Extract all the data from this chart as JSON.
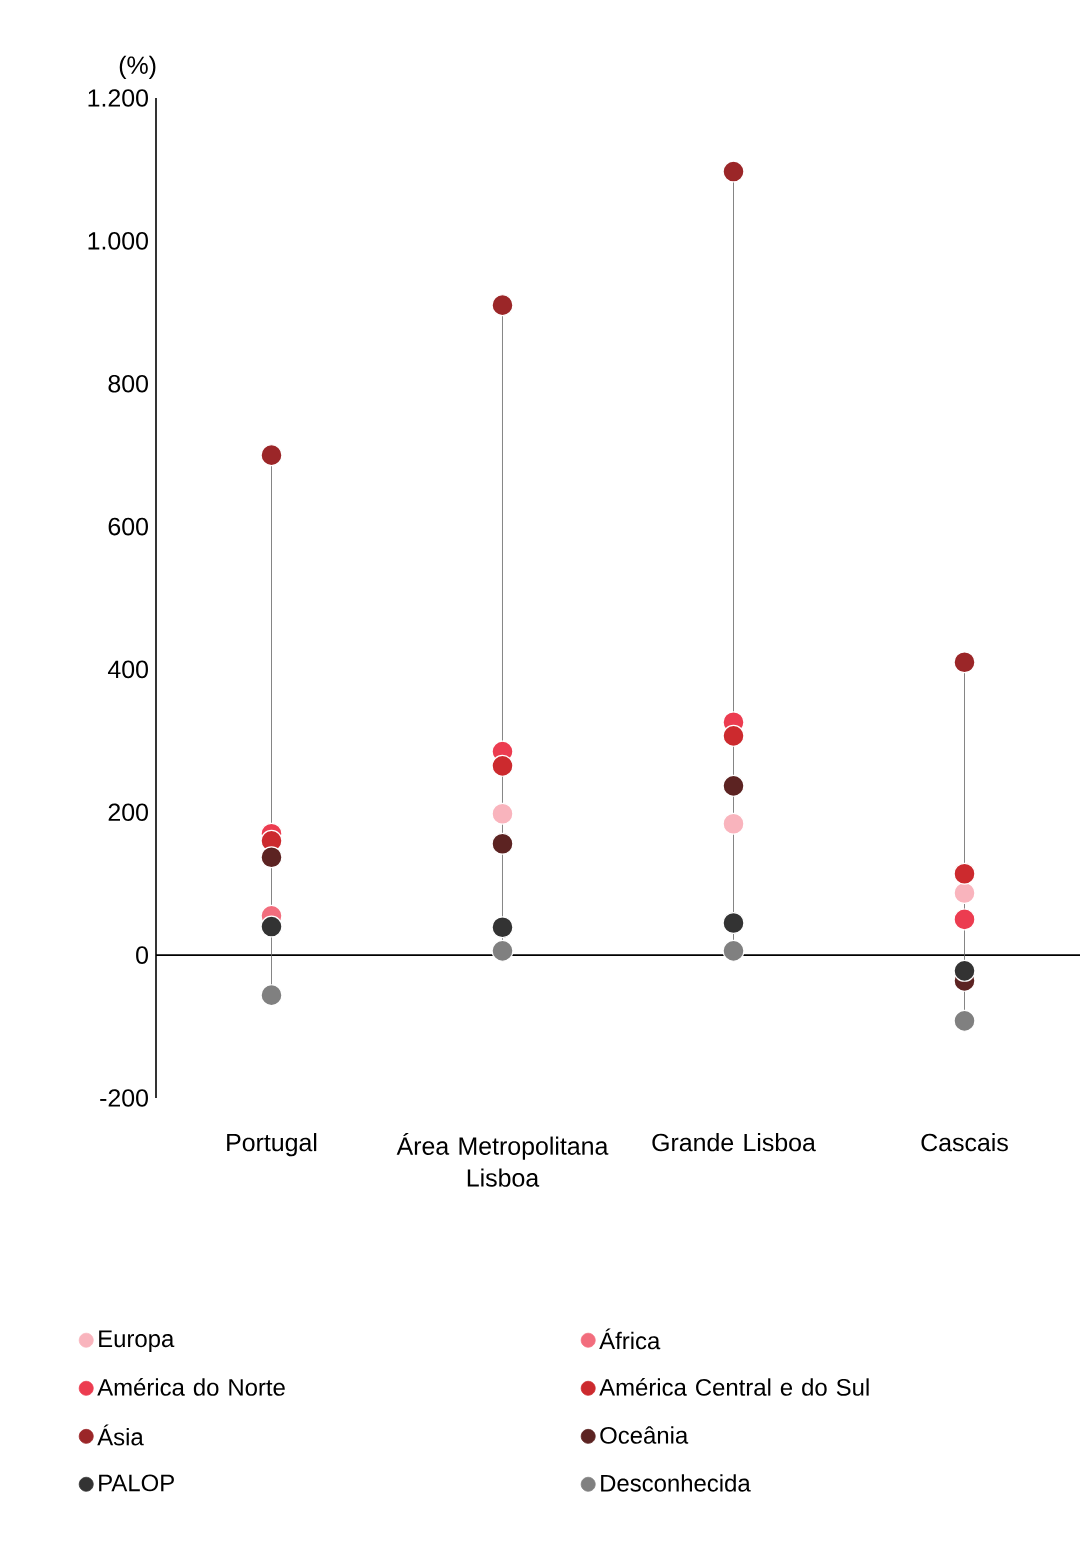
{
  "chart_data": {
    "type": "scatter",
    "ylabel": "(%)",
    "categories": [
      "Portugal",
      "Área Metropolitana Lisboa",
      "Grande Lisboa",
      "Cascais"
    ],
    "series": [
      {
        "name": "Europa",
        "color": "#f9b4bd",
        "values": [
          null,
          198,
          184,
          87
        ]
      },
      {
        "name": "África",
        "color": "#f26d7d",
        "values": [
          55,
          null,
          null,
          null
        ]
      },
      {
        "name": "América do Norte",
        "color": "#ec3c50",
        "values": [
          170,
          285,
          326,
          50
        ]
      },
      {
        "name": "América Central e do Sul",
        "color": "#cc2a2e",
        "values": [
          160,
          265,
          307,
          114
        ]
      },
      {
        "name": "Ásia",
        "color": "#9b2628",
        "values": [
          700,
          910,
          1097,
          410
        ]
      },
      {
        "name": "Oceânia",
        "color": "#5c2322",
        "values": [
          137,
          156,
          237,
          -36
        ]
      },
      {
        "name": "PALOP",
        "color": "#333333",
        "values": [
          40,
          39,
          45,
          -22
        ]
      },
      {
        "name": "Desconhecida",
        "color": "#808080",
        "values": [
          -56,
          6,
          6,
          -92
        ]
      }
    ],
    "ylim": [
      -200,
      1200
    ],
    "yticks": [
      {
        "value": -200,
        "label": "-200"
      },
      0,
      200,
      400,
      600,
      800,
      {
        "value": 1000,
        "label": "1.000"
      },
      {
        "value": 1200,
        "label": "1.200"
      }
    ],
    "legend": "bottom",
    "grid": false
  }
}
